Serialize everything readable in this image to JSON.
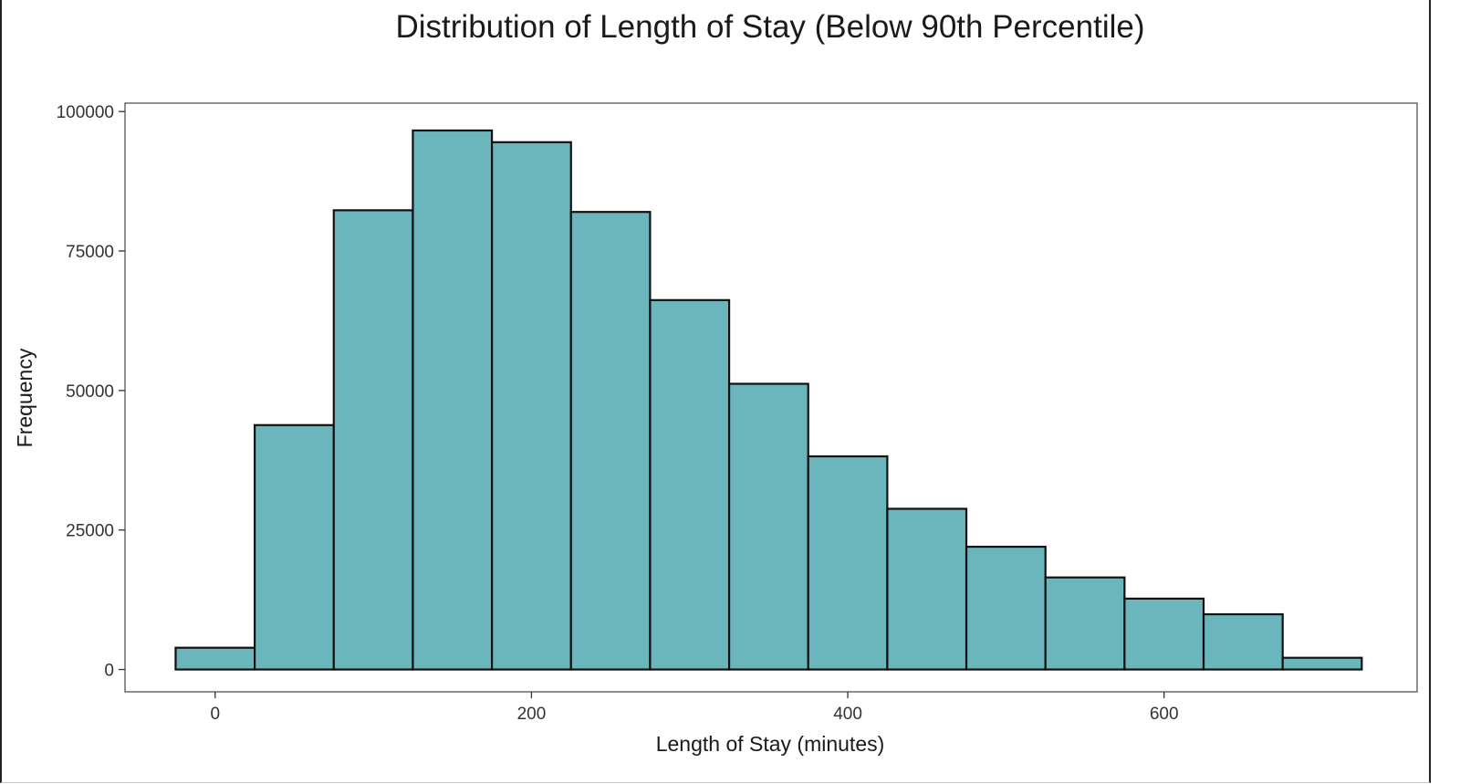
{
  "chart_data": {
    "type": "bar",
    "title": "Distribution of Length of Stay (Below 90th Percentile)",
    "xlabel": "Length of Stay (minutes)",
    "ylabel": "Frequency",
    "bin_width": 50,
    "bin_centers": [
      0,
      50,
      100,
      150,
      200,
      250,
      300,
      350,
      400,
      450,
      500,
      550,
      600,
      650,
      700
    ],
    "values": [
      3900,
      43800,
      82300,
      96600,
      94500,
      82000,
      66200,
      51200,
      38200,
      28800,
      22000,
      16500,
      12700,
      9900,
      2100
    ],
    "xlim": [
      -57,
      760
    ],
    "ylim": [
      -4000,
      101500
    ],
    "x_ticks": [
      0,
      200,
      400,
      600
    ],
    "y_ticks": [
      0,
      25000,
      50000,
      75000,
      100000
    ],
    "grid": false,
    "legend": "none",
    "colors": {
      "bar_fill": "#6bb6bd",
      "bar_stroke": "#111111",
      "panel_border": "#555555"
    }
  }
}
